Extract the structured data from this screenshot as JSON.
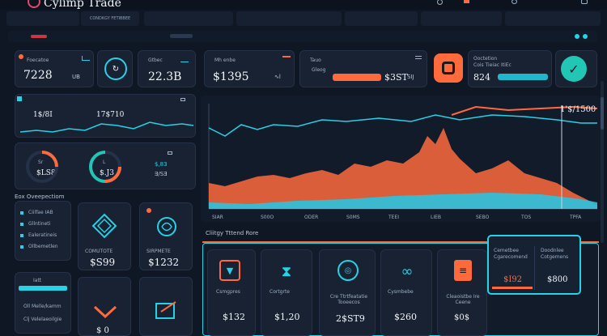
{
  "header": {
    "brand": "Cylimp Trade",
    "nav_tabs": [
      "",
      "CONDKGY FETIBBEE",
      ""
    ],
    "tab_labels_sub": [
      "",
      "",
      ""
    ],
    "sub_link": "",
    "top_icons_text": [
      "",
      "",
      "",
      ""
    ]
  },
  "stats": [
    {
      "label": "Foecatoe",
      "value": "7228",
      "sub": "UB"
    },
    {
      "label": "",
      "value": "",
      "sub": ""
    },
    {
      "label": "Gtbec",
      "value": "22.3B",
      "sub": ""
    },
    {
      "label": "Mh enbe",
      "value": "$1395",
      "sub": "∿l"
    },
    {
      "label": "Tauo",
      "value": "$3ST",
      "sub": "SIJ"
    },
    {
      "label": "Ooctetion",
      "value": "824",
      "sub": ""
    }
  ],
  "stat4_caption": "Gleog",
  "stat6_caption": "Cois Tieiac ItiEc",
  "mini_chart": {
    "left_value": "1$/8I",
    "right_value": "17$710"
  },
  "gauges": [
    {
      "label": "Sr",
      "value": "$LS8"
    },
    {
      "label": "L",
      "value": "$.J3"
    }
  ],
  "gauge_side": {
    "top": "$,83",
    "bottom": "Ǝ/SƎ"
  },
  "left_section_title": "Eox Oveepectiom",
  "left_list": [
    "Ciilfae IAB",
    "Gllntineti",
    "Ealeratineis",
    "Ollbemetlen"
  ],
  "left_list2_title": "Iatt",
  "left_list2": [
    "Oll Melle/kamm",
    "Clj Velelaeoilgie"
  ],
  "cards_left": [
    {
      "label": "COMUTOTE",
      "value": "$S99"
    },
    {
      "label": "SIRPMETE",
      "value": "$1232"
    }
  ],
  "main_chart": {
    "type": "area",
    "value_label": "1'$/1500",
    "x_labels": [
      "SIAR",
      "S00O",
      "ODER",
      "S0MS",
      "TEEI",
      "LIEB",
      "SEBO",
      "TOS",
      "TPFA"
    ],
    "series": [
      {
        "name": "",
        "color": "#ff6a3d"
      },
      {
        "name": "",
        "color": "#2bc3e0"
      },
      {
        "name": "",
        "color": "#1b3650"
      }
    ]
  },
  "trend_title": "Cliitgy Tttend Rore",
  "bottom_cards": [
    {
      "label": "Csmgpres",
      "value": "$132"
    },
    {
      "label": "Cortgrte",
      "value": "$1,20"
    },
    {
      "label": "Cre Ttrtfeatatie Tooeecos",
      "value": "2$ST9"
    },
    {
      "label": "Cysmbebe",
      "value": "$260"
    },
    {
      "label": "Cleaoistbe Ire Ceene",
      "value": "$0$"
    }
  ],
  "popup": {
    "left_title": "Cemetbee",
    "left_sub": "Cgarecomend",
    "right_title": "Doodnlee",
    "right_sub": "Cotgemens",
    "left_value": "$I92",
    "right_value": "$800"
  }
}
